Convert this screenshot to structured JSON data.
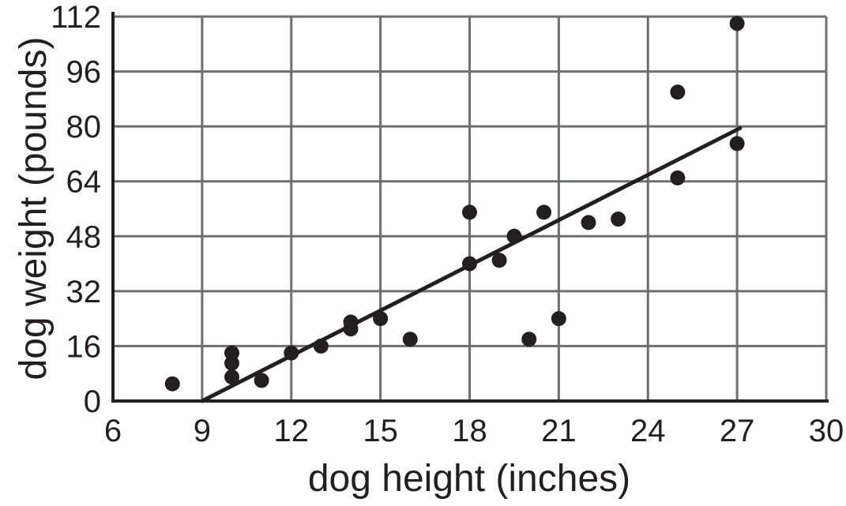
{
  "chart_data": {
    "type": "scatter",
    "title": "",
    "xlabel": "dog height (inches)",
    "ylabel": "dog weight (pounds)",
    "xlim": [
      6,
      30
    ],
    "ylim": [
      0,
      112
    ],
    "x_ticks": [
      6,
      9,
      12,
      15,
      18,
      21,
      24,
      27,
      30
    ],
    "y_ticks": [
      0,
      16,
      32,
      48,
      64,
      80,
      96,
      112
    ],
    "grid": true,
    "legend": "none",
    "points": [
      {
        "x": 8,
        "y": 5
      },
      {
        "x": 10,
        "y": 7
      },
      {
        "x": 10,
        "y": 11
      },
      {
        "x": 10,
        "y": 14
      },
      {
        "x": 11,
        "y": 6
      },
      {
        "x": 12,
        "y": 14
      },
      {
        "x": 13,
        "y": 16
      },
      {
        "x": 14,
        "y": 21
      },
      {
        "x": 14,
        "y": 23
      },
      {
        "x": 15,
        "y": 24
      },
      {
        "x": 16,
        "y": 18
      },
      {
        "x": 18,
        "y": 40
      },
      {
        "x": 18,
        "y": 55
      },
      {
        "x": 19,
        "y": 41
      },
      {
        "x": 19.5,
        "y": 48
      },
      {
        "x": 20,
        "y": 18
      },
      {
        "x": 20.5,
        "y": 55
      },
      {
        "x": 21,
        "y": 24
      },
      {
        "x": 22,
        "y": 52
      },
      {
        "x": 23,
        "y": 53
      },
      {
        "x": 25,
        "y": 65
      },
      {
        "x": 25,
        "y": 90
      },
      {
        "x": 27,
        "y": 75
      },
      {
        "x": 27,
        "y": 110
      }
    ],
    "trend_line": {
      "x1": 9,
      "y1": 0,
      "x2": 27.1,
      "y2": 79.5
    },
    "colors": {
      "point": "#231f20",
      "trend": "#231f20",
      "grid": "#6d6e71",
      "axis": "#231f20",
      "label": "#231f20",
      "background": "#ffffff"
    }
  }
}
